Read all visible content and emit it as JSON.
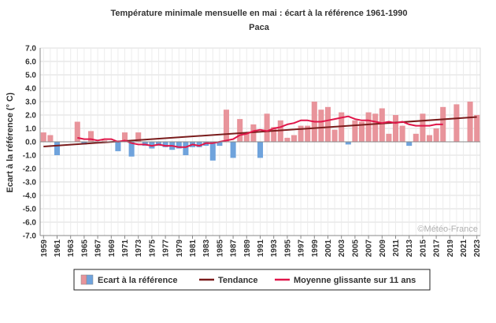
{
  "chart_data": {
    "type": "bar",
    "title": "Température minimale mensuelle en mai : écart à la référence 1961-1990",
    "subtitle": "Paca",
    "ylabel": "Ecart à la référence (° C)",
    "xlabel": "",
    "ylim": [
      -7.0,
      7.0
    ],
    "yticks": [
      "7.0",
      "6.0",
      "5.0",
      "4.0",
      "3.0",
      "2.0",
      "1.0",
      "0.0",
      "-1.0",
      "-2.0",
      "-3.0",
      "-4.0",
      "-5.0",
      "-6.0",
      "-7.0"
    ],
    "grid": true,
    "watermark": "©Météo-France",
    "x": [
      1959,
      1960,
      1961,
      1962,
      1963,
      1964,
      1965,
      1966,
      1967,
      1968,
      1969,
      1970,
      1971,
      1972,
      1973,
      1974,
      1975,
      1976,
      1977,
      1978,
      1979,
      1980,
      1981,
      1982,
      1983,
      1984,
      1985,
      1986,
      1987,
      1988,
      1989,
      1990,
      1991,
      1992,
      1993,
      1994,
      1995,
      1996,
      1997,
      1998,
      1999,
      2000,
      2001,
      2002,
      2003,
      2004,
      2005,
      2006,
      2007,
      2008,
      2009,
      2010,
      2011,
      2012,
      2013,
      2014,
      2015,
      2016,
      2017,
      2018,
      2019,
      2020,
      2021,
      2022,
      2023
    ],
    "xtick_labels": [
      "1959",
      "1961",
      "1963",
      "1965",
      "1967",
      "1969",
      "1971",
      "1973",
      "1975",
      "1977",
      "1979",
      "1981",
      "1983",
      "1985",
      "1987",
      "1989",
      "1991",
      "1993",
      "1995",
      "1997",
      "1999",
      "2001",
      "2003",
      "2005",
      "2007",
      "2009",
      "2011",
      "2013",
      "2015",
      "2017",
      "2019",
      "2021",
      "2023"
    ],
    "series": [
      {
        "name": "Ecart à la référence",
        "type": "bar",
        "positive_color": "#e8949b",
        "negative_color": "#6fa3dc",
        "values": [
          0.7,
          0.5,
          -1.0,
          0.0,
          0.0,
          1.5,
          -0.2,
          0.8,
          0.0,
          0.1,
          0.0,
          -0.7,
          0.7,
          -1.1,
          0.7,
          -0.3,
          -0.5,
          -0.3,
          -0.4,
          -0.6,
          -0.5,
          -1.0,
          -0.4,
          -0.4,
          -0.3,
          -1.4,
          -0.3,
          2.4,
          -1.2,
          1.7,
          0.7,
          1.3,
          -1.2,
          2.1,
          1.1,
          1.6,
          0.3,
          0.5,
          1.2,
          1.2,
          3.0,
          2.4,
          2.6,
          0.9,
          2.2,
          -0.2,
          1.6,
          1.5,
          2.2,
          2.1,
          2.5,
          0.6,
          2.0,
          1.2,
          -0.3,
          0.6,
          2.1,
          0.5,
          1.0,
          2.6,
          0.0,
          2.8,
          0.0,
          3.0,
          2.0
        ]
      },
      {
        "name": "Tendance",
        "type": "line",
        "color": "#7a1c1c",
        "x": [
          1959,
          2023
        ],
        "values": [
          -0.35,
          1.85
        ]
      },
      {
        "name": "Moyenne glissante sur 11 ans",
        "type": "line",
        "color": "#e0174a",
        "x": [
          1964,
          1965,
          1966,
          1967,
          1968,
          1969,
          1970,
          1971,
          1972,
          1973,
          1974,
          1975,
          1976,
          1977,
          1978,
          1979,
          1980,
          1981,
          1982,
          1983,
          1984,
          1985,
          1986,
          1987,
          1988,
          1989,
          1990,
          1991,
          1992,
          1993,
          1994,
          1995,
          1996,
          1997,
          1998,
          1999,
          2000,
          2001,
          2002,
          2003,
          2004,
          2005,
          2006,
          2007,
          2008,
          2009,
          2010,
          2011,
          2012,
          2013,
          2014,
          2015,
          2016,
          2017,
          2018
        ],
        "values": [
          0.3,
          0.2,
          0.2,
          0.1,
          0.2,
          0.2,
          0.0,
          0.1,
          -0.1,
          -0.2,
          -0.2,
          -0.3,
          -0.2,
          -0.3,
          -0.3,
          -0.4,
          -0.4,
          -0.2,
          -0.3,
          -0.1,
          -0.1,
          0.0,
          0.1,
          0.2,
          0.5,
          0.6,
          0.8,
          0.9,
          0.8,
          1.0,
          1.1,
          1.3,
          1.4,
          1.6,
          1.6,
          1.5,
          1.5,
          1.6,
          1.7,
          1.8,
          1.9,
          1.7,
          1.6,
          1.6,
          1.5,
          1.4,
          1.5,
          1.4,
          1.5,
          1.3,
          1.2,
          1.2,
          1.2,
          1.3,
          1.3
        ]
      }
    ],
    "legend": {
      "position": "bottom",
      "items": [
        "Ecart à la référence",
        "Tendance",
        "Moyenne glissante sur 11 ans"
      ]
    }
  }
}
